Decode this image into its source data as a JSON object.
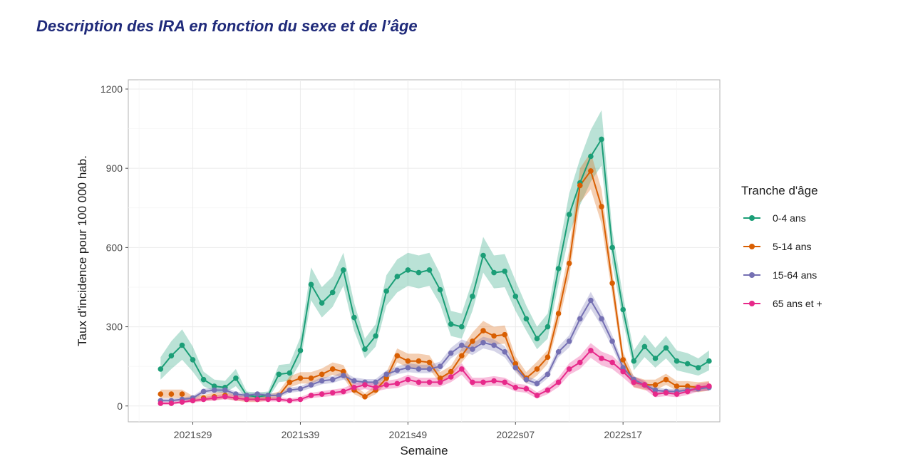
{
  "page": {
    "title": "Description des IRA en fonction du sexe et de l’âge"
  },
  "chart_data": {
    "type": "line",
    "title": "Description des IRA en fonction du sexe et de l’âge",
    "xlabel": "Semaine",
    "ylabel": "Taux d'incidence pour 100 000 hab.",
    "ylim": [
      -60,
      1235
    ],
    "grid": true,
    "legend_title": "Tranche d'âge",
    "legend_position": "right",
    "x_index_range": [
      -3,
      52
    ],
    "x_ticks": [
      {
        "index": 3,
        "label": "2021s29"
      },
      {
        "index": 13,
        "label": "2021s39"
      },
      {
        "index": 23,
        "label": "2021s49"
      },
      {
        "index": 33,
        "label": "2022s07"
      },
      {
        "index": 43,
        "label": "2022s17"
      }
    ],
    "y_ticks": [
      0,
      300,
      600,
      900,
      1200
    ],
    "series": [
      {
        "name": "0-4 ans",
        "color": "#1b9e77",
        "values": [
          140,
          190,
          230,
          175,
          100,
          75,
          70,
          105,
          40,
          35,
          40,
          120,
          125,
          210,
          460,
          390,
          430,
          515,
          335,
          215,
          265,
          435,
          490,
          515,
          505,
          515,
          440,
          310,
          300,
          415,
          570,
          505,
          510,
          415,
          330,
          255,
          300,
          520,
          725,
          845,
          945,
          1010,
          600,
          365,
          170,
          225,
          180,
          220,
          170,
          160,
          145,
          170
        ],
        "lower": [
          100,
          140,
          175,
          130,
          75,
          55,
          50,
          75,
          28,
          25,
          28,
          90,
          95,
          165,
          400,
          335,
          375,
          455,
          285,
          180,
          225,
          380,
          430,
          455,
          445,
          455,
          385,
          265,
          255,
          360,
          505,
          445,
          450,
          360,
          285,
          215,
          255,
          460,
          650,
          760,
          850,
          910,
          540,
          320,
          135,
          185,
          145,
          180,
          135,
          125,
          115,
          135
        ],
        "upper": [
          185,
          245,
          290,
          225,
          130,
          100,
          95,
          140,
          55,
          50,
          55,
          155,
          160,
          260,
          525,
          450,
          490,
          580,
          390,
          255,
          310,
          495,
          555,
          580,
          570,
          580,
          500,
          360,
          350,
          475,
          640,
          570,
          575,
          475,
          380,
          300,
          350,
          585,
          805,
          935,
          1045,
          1120,
          665,
          415,
          210,
          270,
          220,
          265,
          210,
          200,
          180,
          210
        ]
      },
      {
        "name": "5-14 ans",
        "color": "#d95f02",
        "values": [
          45,
          45,
          45,
          25,
          30,
          35,
          40,
          30,
          25,
          25,
          30,
          40,
          90,
          105,
          105,
          120,
          140,
          130,
          60,
          35,
          60,
          105,
          190,
          170,
          170,
          165,
          105,
          130,
          190,
          245,
          285,
          265,
          270,
          160,
          105,
          140,
          185,
          350,
          540,
          835,
          890,
          755,
          465,
          175,
          90,
          80,
          80,
          100,
          75,
          75,
          70,
          75
        ],
        "lower": [
          30,
          30,
          30,
          15,
          20,
          22,
          28,
          20,
          15,
          15,
          20,
          28,
          70,
          85,
          85,
          100,
          118,
          108,
          45,
          25,
          45,
          85,
          165,
          145,
          145,
          140,
          85,
          110,
          165,
          215,
          250,
          232,
          236,
          135,
          85,
          115,
          160,
          310,
          490,
          770,
          820,
          690,
          420,
          145,
          70,
          60,
          60,
          80,
          58,
          58,
          52,
          58
        ],
        "upper": [
          62,
          62,
          62,
          38,
          42,
          50,
          55,
          42,
          38,
          38,
          42,
          55,
          112,
          128,
          128,
          142,
          165,
          155,
          78,
          48,
          78,
          128,
          218,
          198,
          198,
          192,
          128,
          152,
          218,
          278,
          322,
          300,
          305,
          188,
          128,
          168,
          212,
          392,
          592,
          900,
          960,
          820,
          512,
          205,
          112,
          100,
          100,
          122,
          94,
          94,
          90,
          94
        ],
        "line_from": 11
      },
      {
        "name": "15-64 ans",
        "color": "#7570b3",
        "values": [
          20,
          20,
          25,
          30,
          55,
          60,
          60,
          45,
          40,
          45,
          40,
          40,
          60,
          65,
          80,
          95,
          100,
          115,
          95,
          90,
          90,
          120,
          135,
          145,
          140,
          140,
          150,
          200,
          230,
          215,
          240,
          230,
          205,
          145,
          100,
          85,
          120,
          205,
          245,
          330,
          400,
          330,
          245,
          145,
          100,
          80,
          60,
          55,
          55,
          60,
          65,
          70
        ],
        "lower": [
          15,
          15,
          18,
          22,
          45,
          50,
          50,
          36,
          32,
          36,
          32,
          32,
          50,
          55,
          68,
          82,
          87,
          100,
          82,
          78,
          78,
          105,
          120,
          128,
          124,
          124,
          132,
          180,
          208,
          193,
          218,
          208,
          184,
          128,
          86,
          72,
          105,
          185,
          222,
          302,
          368,
          302,
          222,
          128,
          86,
          68,
          50,
          45,
          45,
          50,
          55,
          58
        ],
        "upper": [
          28,
          28,
          32,
          38,
          65,
          70,
          70,
          54,
          48,
          54,
          48,
          48,
          70,
          75,
          92,
          108,
          113,
          130,
          108,
          102,
          102,
          135,
          150,
          162,
          156,
          156,
          168,
          220,
          252,
          237,
          262,
          252,
          226,
          162,
          114,
          98,
          135,
          225,
          268,
          358,
          432,
          358,
          268,
          162,
          114,
          92,
          70,
          65,
          65,
          70,
          75,
          82
        ]
      },
      {
        "name": "65 ans et +",
        "color": "#e7298a",
        "values": [
          10,
          10,
          15,
          20,
          25,
          30,
          35,
          30,
          25,
          25,
          25,
          25,
          20,
          25,
          40,
          45,
          50,
          55,
          70,
          80,
          70,
          80,
          85,
          100,
          90,
          90,
          90,
          110,
          140,
          90,
          90,
          95,
          90,
          70,
          65,
          40,
          60,
          90,
          140,
          165,
          210,
          180,
          165,
          130,
          90,
          80,
          45,
          50,
          45,
          55,
          70,
          75
        ],
        "lower": [
          5,
          5,
          9,
          13,
          17,
          21,
          25,
          21,
          17,
          17,
          17,
          17,
          13,
          17,
          30,
          34,
          38,
          42,
          55,
          64,
          55,
          64,
          68,
          82,
          73,
          73,
          73,
          90,
          118,
          73,
          73,
          77,
          73,
          55,
          50,
          28,
          45,
          72,
          118,
          140,
          182,
          154,
          140,
          108,
          72,
          63,
          33,
          37,
          33,
          42,
          55,
          59
        ],
        "upper": [
          16,
          16,
          22,
          28,
          34,
          40,
          46,
          40,
          34,
          34,
          34,
          34,
          28,
          34,
          50,
          56,
          62,
          68,
          85,
          96,
          85,
          96,
          102,
          118,
          107,
          107,
          107,
          130,
          162,
          107,
          107,
          113,
          107,
          85,
          80,
          52,
          75,
          108,
          162,
          190,
          238,
          206,
          190,
          152,
          108,
          97,
          57,
          63,
          57,
          68,
          85,
          91
        ]
      }
    ]
  }
}
